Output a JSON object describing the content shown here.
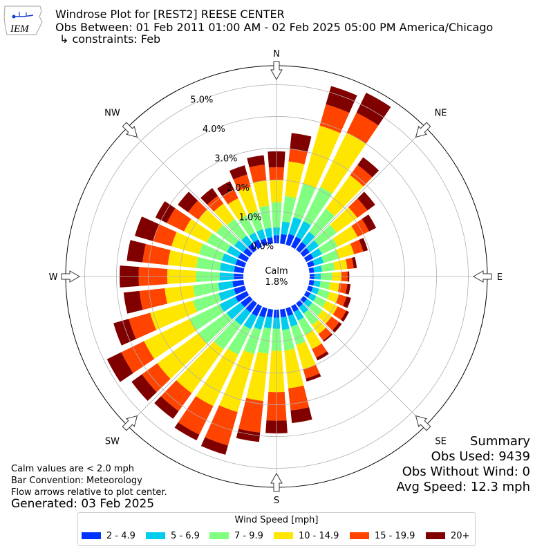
{
  "header": {
    "title": "Windrose Plot for [REST2] REESE CENTER",
    "obs_between": "Obs Between: 01 Feb 2011 01:00 AM - 02 Feb 2025 05:00 PM America/Chicago",
    "constraints": "↳ constraints: Feb"
  },
  "logo": {
    "text": "IEM",
    "color": "#cc2222"
  },
  "calm": {
    "label": "Calm",
    "value": "1.8%"
  },
  "summary": {
    "title": "Summary",
    "obs_used": "Obs Used: 9439",
    "obs_without_wind": "Obs Without Wind: 0",
    "avg_speed": "Avg Speed: 12.3 mph"
  },
  "notes": {
    "calm_note": "Calm values are < 2.0 mph",
    "bar_convention": "Bar Convention: Meteorology",
    "flow_arrows": "Flow arrows relative to plot center."
  },
  "generated": "Generated: 03 Feb 2025",
  "legend": {
    "title": "Wind Speed [mph]",
    "items": [
      {
        "label": "2 - 4.9",
        "color": "#0033ff"
      },
      {
        "label": "5 - 6.9",
        "color": "#00ccee"
      },
      {
        "label": "7 - 9.9",
        "color": "#80ff80"
      },
      {
        "label": "10 - 14.9",
        "color": "#ffe600"
      },
      {
        "label": "15 - 19.9",
        "color": "#ff4400"
      },
      {
        "label": "20+",
        "color": "#800000"
      }
    ]
  },
  "chart_data": {
    "type": "windrose",
    "direction_labels": [
      "N",
      "NE",
      "E",
      "SE",
      "S",
      "SW",
      "W",
      "NW"
    ],
    "radial_tick_labels": [
      "0.0%",
      "1.0%",
      "2.0%",
      "3.0%",
      "4.0%",
      "5.0%"
    ],
    "radial_ticks": [
      0,
      1,
      2,
      3,
      4,
      5
    ],
    "rlim": [
      0,
      5.6
    ],
    "grid": true,
    "bins": [
      "2 - 4.9",
      "5 - 6.9",
      "7 - 9.9",
      "10 - 14.9",
      "15 - 19.9",
      "20+"
    ],
    "colors": [
      "#0033ff",
      "#00ccee",
      "#80ff80",
      "#ffe600",
      "#ff4400",
      "#800000"
    ],
    "calm_percent": 1.8,
    "directions": [
      0,
      10,
      20,
      30,
      40,
      50,
      60,
      70,
      80,
      90,
      100,
      110,
      120,
      130,
      140,
      150,
      160,
      170,
      180,
      190,
      200,
      210,
      220,
      230,
      240,
      250,
      260,
      270,
      280,
      290,
      300,
      310,
      320,
      330,
      340,
      350
    ],
    "cumulative": [
      [
        0.25,
        0.5,
        1.3,
        2.0,
        2.4,
        2.9
      ],
      [
        0.3,
        0.7,
        1.5,
        2.6,
        3.0,
        3.5
      ],
      [
        0.35,
        0.9,
        2.0,
        3.9,
        4.6,
        5.2
      ],
      [
        0.35,
        0.9,
        2.1,
        4.0,
        4.7,
        5.4
      ],
      [
        0.3,
        0.7,
        1.6,
        2.9,
        3.3,
        3.6
      ],
      [
        0.25,
        0.6,
        1.3,
        2.1,
        2.5,
        2.8
      ],
      [
        0.25,
        0.55,
        1.1,
        1.8,
        2.2,
        2.45
      ],
      [
        0.2,
        0.5,
        1.0,
        1.5,
        1.8,
        1.95
      ],
      [
        0.15,
        0.4,
        0.8,
        1.2,
        1.4,
        1.5
      ],
      [
        0.15,
        0.35,
        0.7,
        1.0,
        1.2,
        1.25
      ],
      [
        0.15,
        0.35,
        0.65,
        0.95,
        1.2,
        1.3
      ],
      [
        0.15,
        0.35,
        0.7,
        1.0,
        1.25,
        1.4
      ],
      [
        0.15,
        0.35,
        0.7,
        1.1,
        1.4,
        1.5
      ],
      [
        0.15,
        0.35,
        0.75,
        1.1,
        1.4,
        1.5
      ],
      [
        0.15,
        0.4,
        0.85,
        1.2,
        1.45,
        1.5
      ],
      [
        0.2,
        0.5,
        1.0,
        1.5,
        1.8,
        1.9
      ],
      [
        0.25,
        0.6,
        1.2,
        2.0,
        2.3,
        2.4
      ],
      [
        0.25,
        0.65,
        1.3,
        2.5,
        3.2,
        3.6
      ],
      [
        0.25,
        0.6,
        1.3,
        2.6,
        3.5,
        3.9
      ],
      [
        0.25,
        0.6,
        1.4,
        2.9,
        3.9,
        4.2
      ],
      [
        0.3,
        0.7,
        1.5,
        3.4,
        4.5,
        4.8
      ],
      [
        0.35,
        0.8,
        1.7,
        3.5,
        4.5,
        4.7
      ],
      [
        0.35,
        0.85,
        1.8,
        3.5,
        4.2,
        4.5
      ],
      [
        0.35,
        0.9,
        2.0,
        3.6,
        4.2,
        4.6
      ],
      [
        0.4,
        0.95,
        2.0,
        3.6,
        4.4,
        4.9
      ],
      [
        0.35,
        0.85,
        1.7,
        3.1,
        3.8,
        4.3
      ],
      [
        0.35,
        0.8,
        1.6,
        2.5,
        3.3,
        3.8
      ],
      [
        0.3,
        0.75,
        1.5,
        2.4,
        3.3,
        3.9
      ],
      [
        0.3,
        0.75,
        1.5,
        2.4,
        3.2,
        3.7
      ],
      [
        0.3,
        0.75,
        1.5,
        2.4,
        3.0,
        3.6
      ],
      [
        0.3,
        0.7,
        1.4,
        2.2,
        2.8,
        3.2
      ],
      [
        0.25,
        0.6,
        1.3,
        2.0,
        2.4,
        2.8
      ],
      [
        0.25,
        0.55,
        1.2,
        1.8,
        2.1,
        2.4
      ],
      [
        0.25,
        0.5,
        1.1,
        1.7,
        2.0,
        2.3
      ],
      [
        0.2,
        0.5,
        1.1,
        1.9,
        2.3,
        2.6
      ],
      [
        0.2,
        0.5,
        1.2,
        2.0,
        2.5,
        2.8
      ]
    ]
  }
}
